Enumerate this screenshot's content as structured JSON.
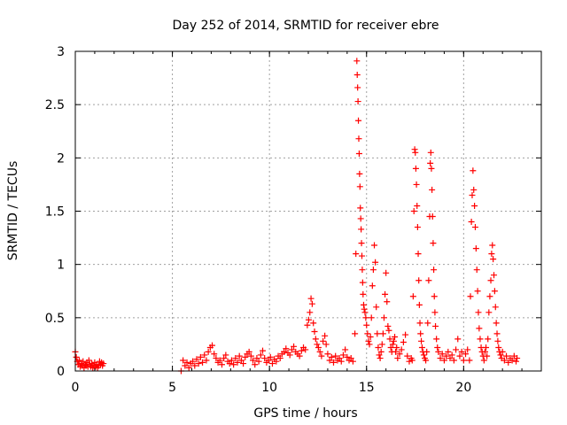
{
  "chart_data": {
    "type": "scatter",
    "title": "Day 252 of 2014, SRMTID for receiver ebre",
    "xlabel": "GPS time / hours",
    "ylabel": "SRMTID / TECUs",
    "xlim": [
      0,
      24
    ],
    "ylim": [
      0,
      3
    ],
    "xticks": [
      "0",
      "5",
      "10",
      "15",
      "20"
    ],
    "yticks": [
      "0",
      "0.5",
      "1",
      "1.5",
      "2",
      "2.5",
      "3"
    ],
    "grid": true,
    "marker": "plus",
    "color": "#ff0000",
    "series": [
      {
        "name": "SRMTID",
        "points": [
          [
            0.0,
            0.18
          ],
          [
            0.05,
            0.13
          ],
          [
            0.1,
            0.09
          ],
          [
            0.15,
            0.06
          ],
          [
            0.2,
            0.1
          ],
          [
            0.25,
            0.04
          ],
          [
            0.3,
            0.07
          ],
          [
            0.35,
            0.05
          ],
          [
            0.4,
            0.09
          ],
          [
            0.45,
            0.03
          ],
          [
            0.5,
            0.06
          ],
          [
            0.55,
            0.05
          ],
          [
            0.6,
            0.08
          ],
          [
            0.65,
            0.04
          ],
          [
            0.7,
            0.1
          ],
          [
            0.75,
            0.06
          ],
          [
            0.8,
            0.04
          ],
          [
            0.85,
            0.07
          ],
          [
            0.9,
            0.03
          ],
          [
            0.95,
            0.05
          ],
          [
            1.0,
            0.08
          ],
          [
            1.05,
            0.04
          ],
          [
            1.1,
            0.06
          ],
          [
            1.15,
            0.03
          ],
          [
            1.2,
            0.05
          ],
          [
            1.25,
            0.09
          ],
          [
            1.3,
            0.06
          ],
          [
            1.35,
            0.08
          ],
          [
            1.4,
            0.05
          ],
          [
            1.45,
            0.07
          ],
          [
            5.45,
            0.0
          ],
          [
            5.55,
            0.1
          ],
          [
            5.65,
            0.05
          ],
          [
            5.75,
            0.08
          ],
          [
            5.85,
            0.03
          ],
          [
            5.95,
            0.07
          ],
          [
            6.05,
            0.09
          ],
          [
            6.15,
            0.05
          ],
          [
            6.25,
            0.11
          ],
          [
            6.35,
            0.07
          ],
          [
            6.45,
            0.13
          ],
          [
            6.55,
            0.08
          ],
          [
            6.65,
            0.15
          ],
          [
            6.75,
            0.1
          ],
          [
            6.85,
            0.18
          ],
          [
            6.95,
            0.22
          ],
          [
            7.05,
            0.24
          ],
          [
            7.15,
            0.16
          ],
          [
            7.25,
            0.12
          ],
          [
            7.35,
            0.08
          ],
          [
            7.45,
            0.1
          ],
          [
            7.55,
            0.06
          ],
          [
            7.65,
            0.12
          ],
          [
            7.75,
            0.15
          ],
          [
            7.85,
            0.09
          ],
          [
            7.95,
            0.07
          ],
          [
            8.05,
            0.1
          ],
          [
            8.15,
            0.06
          ],
          [
            8.25,
            0.12
          ],
          [
            8.35,
            0.08
          ],
          [
            8.45,
            0.14
          ],
          [
            8.55,
            0.1
          ],
          [
            8.65,
            0.07
          ],
          [
            8.75,
            0.13
          ],
          [
            8.85,
            0.16
          ],
          [
            8.95,
            0.18
          ],
          [
            9.05,
            0.14
          ],
          [
            9.15,
            0.1
          ],
          [
            9.25,
            0.06
          ],
          [
            9.35,
            0.12
          ],
          [
            9.45,
            0.09
          ],
          [
            9.55,
            0.15
          ],
          [
            9.65,
            0.19
          ],
          [
            9.75,
            0.12
          ],
          [
            9.85,
            0.08
          ],
          [
            9.95,
            0.1
          ],
          [
            10.05,
            0.13
          ],
          [
            10.15,
            0.07
          ],
          [
            10.25,
            0.11
          ],
          [
            10.35,
            0.09
          ],
          [
            10.45,
            0.14
          ],
          [
            10.55,
            0.12
          ],
          [
            10.65,
            0.16
          ],
          [
            10.75,
            0.18
          ],
          [
            10.85,
            0.21
          ],
          [
            10.95,
            0.17
          ],
          [
            11.05,
            0.15
          ],
          [
            11.15,
            0.2
          ],
          [
            11.25,
            0.23
          ],
          [
            11.35,
            0.18
          ],
          [
            11.45,
            0.16
          ],
          [
            11.55,
            0.14
          ],
          [
            11.65,
            0.19
          ],
          [
            11.75,
            0.22
          ],
          [
            11.85,
            0.2
          ],
          [
            11.95,
            0.43
          ],
          [
            12.02,
            0.48
          ],
          [
            12.08,
            0.55
          ],
          [
            12.14,
            0.68
          ],
          [
            12.2,
            0.63
          ],
          [
            12.26,
            0.45
          ],
          [
            12.32,
            0.37
          ],
          [
            12.38,
            0.3
          ],
          [
            12.45,
            0.25
          ],
          [
            12.52,
            0.22
          ],
          [
            12.6,
            0.18
          ],
          [
            12.68,
            0.14
          ],
          [
            12.76,
            0.28
          ],
          [
            12.85,
            0.33
          ],
          [
            12.92,
            0.25
          ],
          [
            13.0,
            0.16
          ],
          [
            13.1,
            0.1
          ],
          [
            13.2,
            0.13
          ],
          [
            13.3,
            0.08
          ],
          [
            13.4,
            0.14
          ],
          [
            13.5,
            0.1
          ],
          [
            13.6,
            0.12
          ],
          [
            13.7,
            0.09
          ],
          [
            13.8,
            0.15
          ],
          [
            13.9,
            0.2
          ],
          [
            14.0,
            0.13
          ],
          [
            14.1,
            0.1
          ],
          [
            14.2,
            0.12
          ],
          [
            14.3,
            0.09
          ],
          [
            14.4,
            0.35
          ],
          [
            14.45,
            1.1
          ],
          [
            14.5,
            2.91
          ],
          [
            14.52,
            2.78
          ],
          [
            14.54,
            2.66
          ],
          [
            14.56,
            2.53
          ],
          [
            14.58,
            2.35
          ],
          [
            14.6,
            2.18
          ],
          [
            14.62,
            2.04
          ],
          [
            14.64,
            1.85
          ],
          [
            14.66,
            1.73
          ],
          [
            14.68,
            1.53
          ],
          [
            14.7,
            1.43
          ],
          [
            14.72,
            1.33
          ],
          [
            14.74,
            1.2
          ],
          [
            14.76,
            1.08
          ],
          [
            14.78,
            0.95
          ],
          [
            14.8,
            0.83
          ],
          [
            14.82,
            0.72
          ],
          [
            14.85,
            0.62
          ],
          [
            14.88,
            0.58
          ],
          [
            14.92,
            0.55
          ],
          [
            14.96,
            0.5
          ],
          [
            15.0,
            0.43
          ],
          [
            15.05,
            0.35
          ],
          [
            15.1,
            0.28
          ],
          [
            15.15,
            0.25
          ],
          [
            15.2,
            0.32
          ],
          [
            15.25,
            0.5
          ],
          [
            15.3,
            0.8
          ],
          [
            15.35,
            0.95
          ],
          [
            15.4,
            1.18
          ],
          [
            15.45,
            1.02
          ],
          [
            15.5,
            0.6
          ],
          [
            15.55,
            0.35
          ],
          [
            15.6,
            0.22
          ],
          [
            15.65,
            0.15
          ],
          [
            15.7,
            0.12
          ],
          [
            15.75,
            0.18
          ],
          [
            15.8,
            0.25
          ],
          [
            15.85,
            0.35
          ],
          [
            15.9,
            0.5
          ],
          [
            15.95,
            0.72
          ],
          [
            16.0,
            0.92
          ],
          [
            16.05,
            0.65
          ],
          [
            16.1,
            0.42
          ],
          [
            16.15,
            0.38
          ],
          [
            16.2,
            0.3
          ],
          [
            16.25,
            0.22
          ],
          [
            16.3,
            0.18
          ],
          [
            16.35,
            0.25
          ],
          [
            16.4,
            0.28
          ],
          [
            16.45,
            0.32
          ],
          [
            16.5,
            0.18
          ],
          [
            16.55,
            0.22
          ],
          [
            16.6,
            0.12
          ],
          [
            16.7,
            0.16
          ],
          [
            16.8,
            0.2
          ],
          [
            16.9,
            0.27
          ],
          [
            17.0,
            0.34
          ],
          [
            17.1,
            0.14
          ],
          [
            17.2,
            0.09
          ],
          [
            17.3,
            0.12
          ],
          [
            17.35,
            0.1
          ],
          [
            17.4,
            0.7
          ],
          [
            17.44,
            1.5
          ],
          [
            17.48,
            2.08
          ],
          [
            17.51,
            2.05
          ],
          [
            17.54,
            1.9
          ],
          [
            17.57,
            1.75
          ],
          [
            17.6,
            1.55
          ],
          [
            17.63,
            1.35
          ],
          [
            17.66,
            1.1
          ],
          [
            17.69,
            0.85
          ],
          [
            17.72,
            0.62
          ],
          [
            17.75,
            0.45
          ],
          [
            17.78,
            0.35
          ],
          [
            17.82,
            0.28
          ],
          [
            17.86,
            0.22
          ],
          [
            17.9,
            0.18
          ],
          [
            17.95,
            0.15
          ],
          [
            18.0,
            0.12
          ],
          [
            18.05,
            0.1
          ],
          [
            18.1,
            0.18
          ],
          [
            18.15,
            0.45
          ],
          [
            18.2,
            0.85
          ],
          [
            18.25,
            1.45
          ],
          [
            18.28,
            1.95
          ],
          [
            18.31,
            2.05
          ],
          [
            18.34,
            1.9
          ],
          [
            18.37,
            1.7
          ],
          [
            18.4,
            1.45
          ],
          [
            18.43,
            1.2
          ],
          [
            18.46,
            0.95
          ],
          [
            18.49,
            0.7
          ],
          [
            18.52,
            0.55
          ],
          [
            18.55,
            0.42
          ],
          [
            18.6,
            0.3
          ],
          [
            18.65,
            0.22
          ],
          [
            18.7,
            0.18
          ],
          [
            18.8,
            0.12
          ],
          [
            18.9,
            0.16
          ],
          [
            19.0,
            0.1
          ],
          [
            19.1,
            0.14
          ],
          [
            19.2,
            0.18
          ],
          [
            19.3,
            0.12
          ],
          [
            19.4,
            0.15
          ],
          [
            19.5,
            0.1
          ],
          [
            19.6,
            0.2
          ],
          [
            19.7,
            0.3
          ],
          [
            19.8,
            0.14
          ],
          [
            19.9,
            0.18
          ],
          [
            20.0,
            0.1
          ],
          [
            20.1,
            0.16
          ],
          [
            20.2,
            0.2
          ],
          [
            20.3,
            0.1
          ],
          [
            20.35,
            0.7
          ],
          [
            20.4,
            1.4
          ],
          [
            20.44,
            1.65
          ],
          [
            20.48,
            1.88
          ],
          [
            20.52,
            1.7
          ],
          [
            20.56,
            1.55
          ],
          [
            20.6,
            1.35
          ],
          [
            20.64,
            1.15
          ],
          [
            20.68,
            0.95
          ],
          [
            20.72,
            0.75
          ],
          [
            20.76,
            0.55
          ],
          [
            20.8,
            0.4
          ],
          [
            20.85,
            0.3
          ],
          [
            20.9,
            0.22
          ],
          [
            20.95,
            0.18
          ],
          [
            21.0,
            0.14
          ],
          [
            21.05,
            0.1
          ],
          [
            21.1,
            0.18
          ],
          [
            21.15,
            0.22
          ],
          [
            21.2,
            0.14
          ],
          [
            21.25,
            0.3
          ],
          [
            21.3,
            0.55
          ],
          [
            21.35,
            0.7
          ],
          [
            21.4,
            0.85
          ],
          [
            21.44,
            1.1
          ],
          [
            21.48,
            1.18
          ],
          [
            21.52,
            1.05
          ],
          [
            21.56,
            0.9
          ],
          [
            21.6,
            0.75
          ],
          [
            21.64,
            0.6
          ],
          [
            21.68,
            0.45
          ],
          [
            21.72,
            0.35
          ],
          [
            21.76,
            0.28
          ],
          [
            21.8,
            0.22
          ],
          [
            21.85,
            0.18
          ],
          [
            21.9,
            0.15
          ],
          [
            21.95,
            0.12
          ],
          [
            22.0,
            0.18
          ],
          [
            22.1,
            0.1
          ],
          [
            22.2,
            0.14
          ],
          [
            22.3,
            0.08
          ],
          [
            22.4,
            0.12
          ],
          [
            22.5,
            0.1
          ],
          [
            22.6,
            0.14
          ],
          [
            22.7,
            0.09
          ],
          [
            22.75,
            0.12
          ]
        ]
      }
    ]
  }
}
